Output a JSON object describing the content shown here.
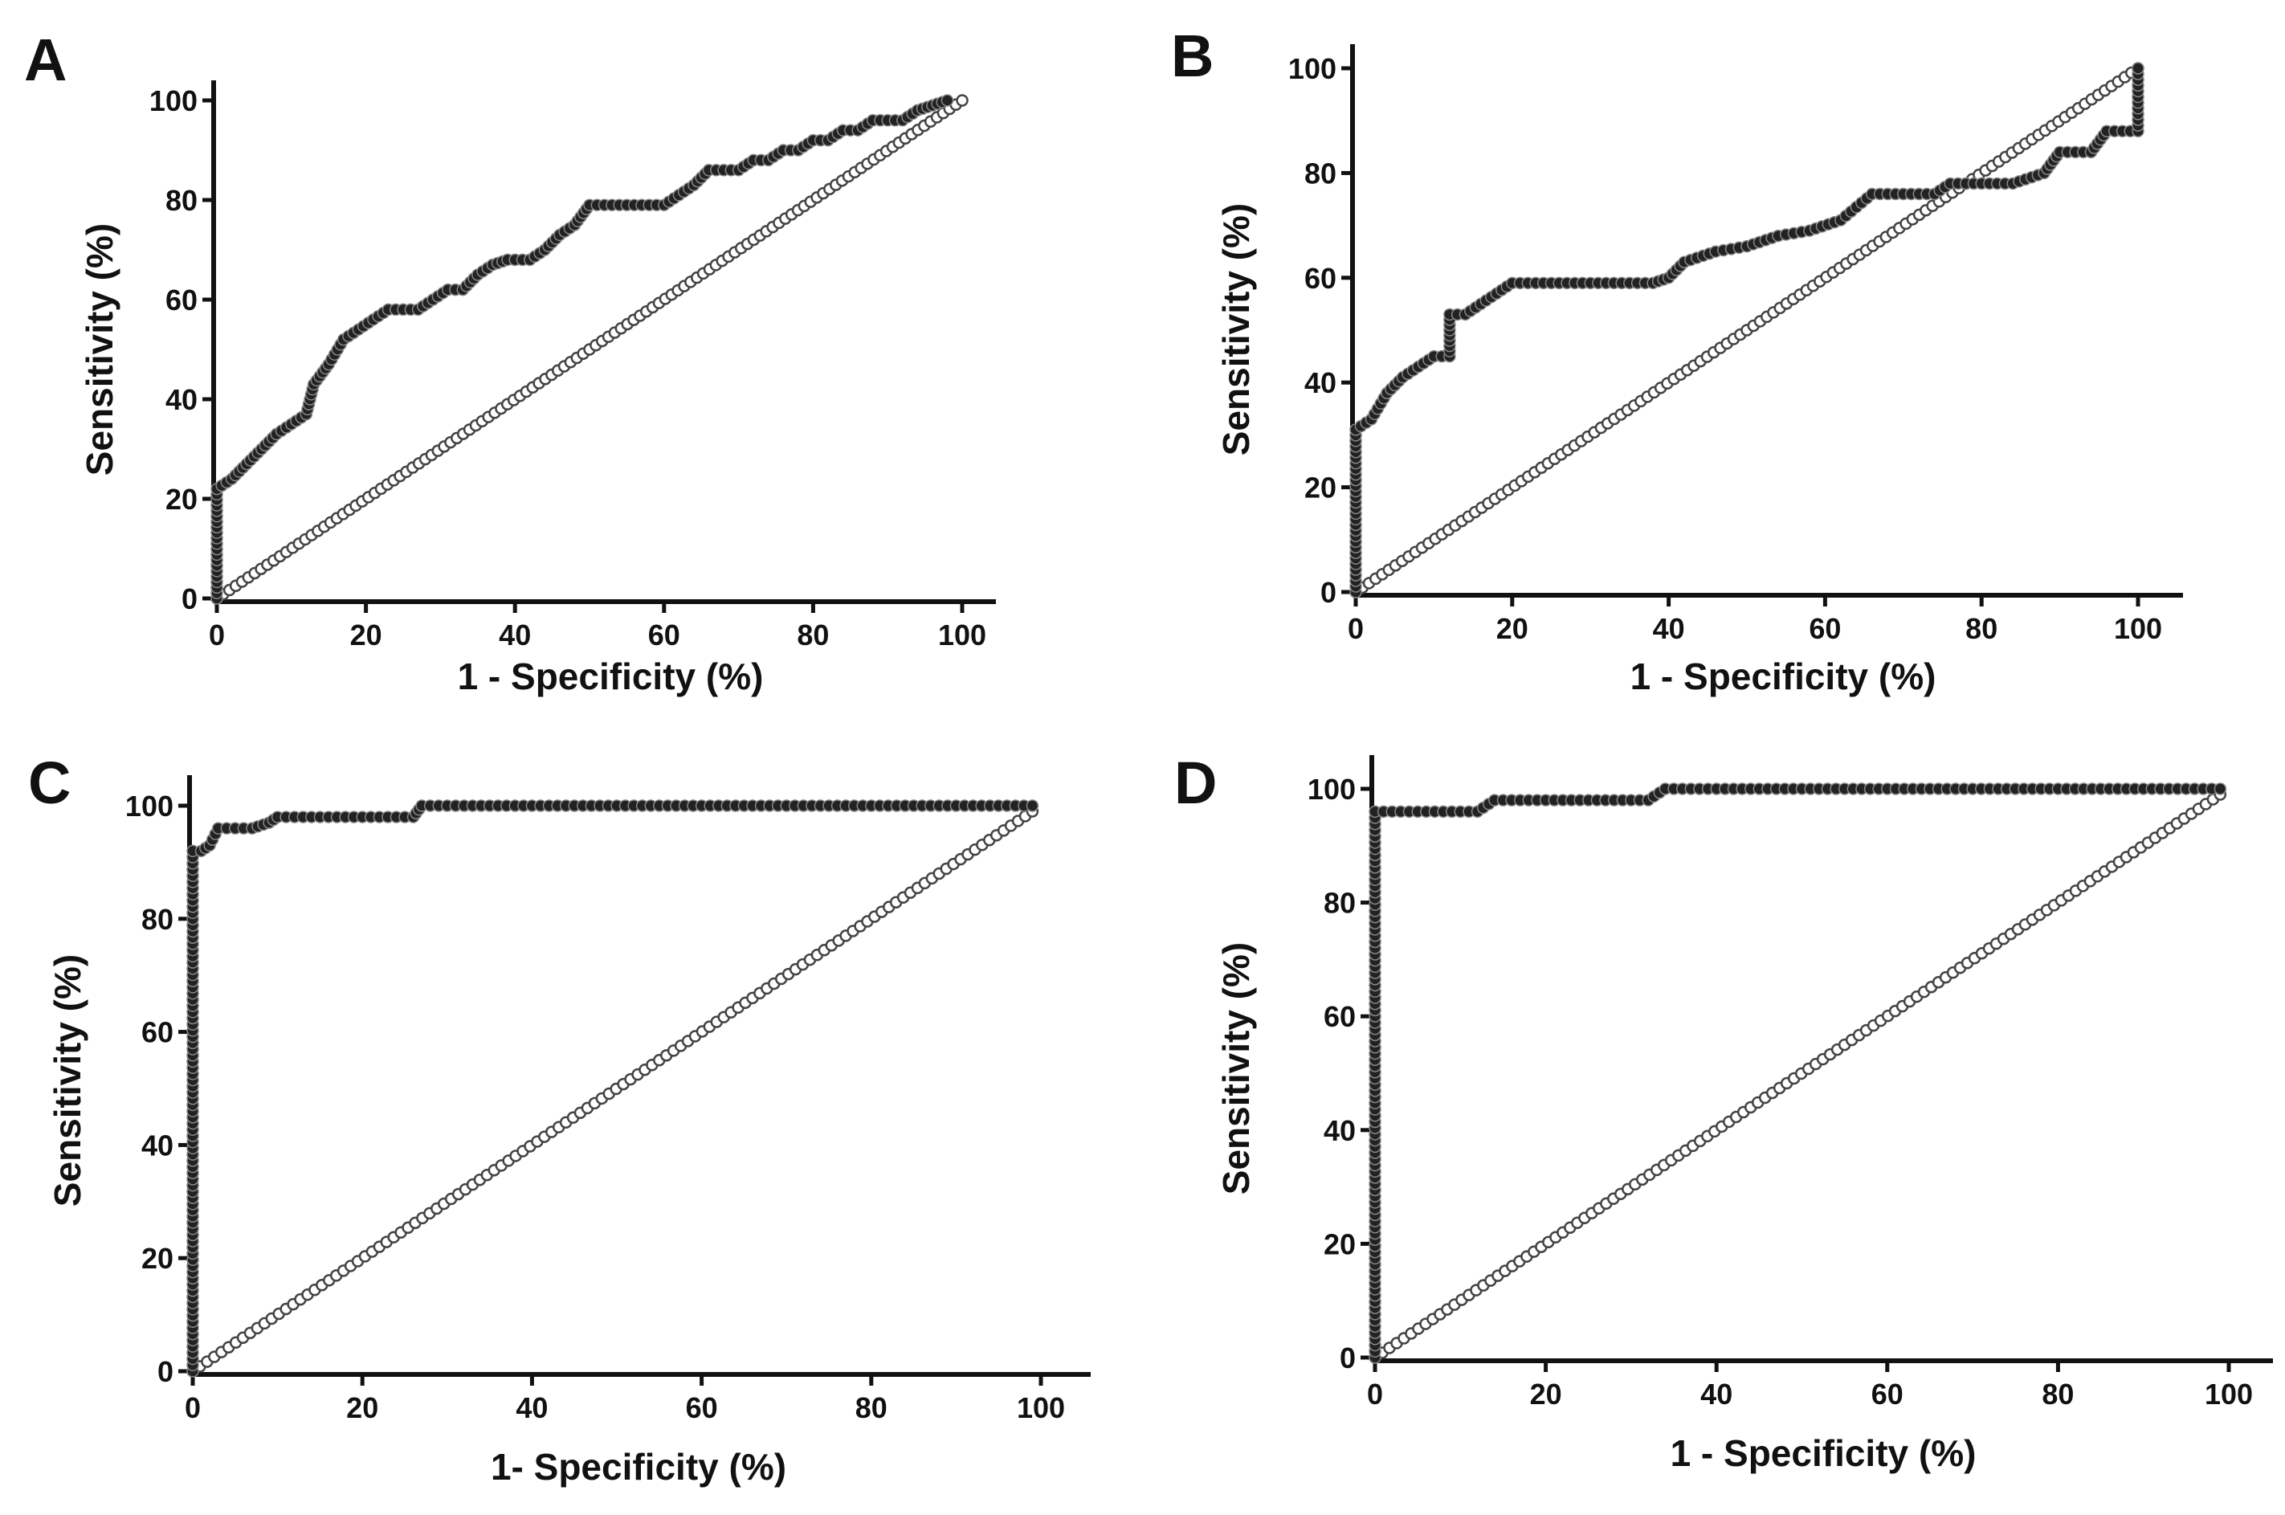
{
  "chart_data": [
    {
      "panel": "A",
      "type": "line",
      "xlabel": "1 - Specificity (%)",
      "ylabel": "Sensitivity (%)",
      "xlim": [
        0,
        100
      ],
      "ylim": [
        0,
        100
      ],
      "xticks": [
        0,
        20,
        40,
        60,
        80,
        100
      ],
      "yticks": [
        0,
        20,
        40,
        60,
        80,
        100
      ],
      "legend": "none",
      "series": [
        {
          "x": [
            0,
            0,
            2,
            4,
            6,
            8,
            10,
            12,
            13,
            15,
            17,
            19,
            21,
            23,
            25,
            27,
            29,
            31,
            33,
            35,
            37,
            39,
            42,
            44,
            46,
            48,
            50,
            52,
            54,
            56,
            58,
            60,
            62,
            64,
            66,
            68,
            70,
            72,
            74,
            76,
            78,
            80,
            82,
            84,
            86,
            88,
            90,
            92,
            94,
            96,
            98
          ],
          "y": [
            0,
            22,
            24,
            27,
            30,
            33,
            35,
            37,
            43,
            47,
            52,
            54,
            56,
            58,
            58,
            58,
            60,
            62,
            62,
            65,
            67,
            68,
            68,
            70,
            73,
            75,
            79,
            79,
            79,
            79,
            79,
            79,
            81,
            83,
            86,
            86,
            86,
            88,
            88,
            90,
            90,
            92,
            92,
            94,
            94,
            96,
            96,
            96,
            98,
            99,
            100
          ]
        },
        {
          "x": [
            0,
            100
          ],
          "y": [
            0,
            100
          ]
        }
      ]
    },
    {
      "panel": "B",
      "type": "line",
      "xlabel": "1 - Specificity (%)",
      "ylabel": "Sensitivity (%)",
      "xlim": [
        0,
        100
      ],
      "ylim": [
        0,
        100
      ],
      "xticks": [
        0,
        20,
        40,
        60,
        80,
        100
      ],
      "yticks": [
        0,
        20,
        40,
        60,
        80,
        100
      ],
      "legend": "none",
      "series": [
        {
          "x": [
            0,
            0,
            2,
            4,
            6,
            8,
            10,
            12,
            12,
            14,
            16,
            18,
            20,
            22,
            26,
            30,
            34,
            38,
            40,
            42,
            46,
            50,
            54,
            58,
            62,
            66,
            70,
            74,
            76,
            80,
            84,
            88,
            90,
            94,
            96,
            100,
            100
          ],
          "y": [
            0,
            31,
            33,
            38,
            41,
            43,
            45,
            45,
            53,
            53,
            55,
            57,
            59,
            59,
            59,
            59,
            59,
            59,
            60,
            63,
            65,
            66,
            68,
            69,
            71,
            76,
            76,
            76,
            78,
            78,
            78,
            80,
            84,
            84,
            88,
            88,
            100
          ]
        },
        {
          "x": [
            0,
            100
          ],
          "y": [
            0,
            100
          ]
        }
      ]
    },
    {
      "panel": "C",
      "type": "line",
      "xlabel": "1- Specificity (%)",
      "ylabel": "Sensitivity (%)",
      "xlim": [
        0,
        100
      ],
      "ylim": [
        0,
        100
      ],
      "xticks": [
        0,
        20,
        40,
        60,
        80,
        100
      ],
      "yticks": [
        0,
        20,
        40,
        60,
        80,
        100
      ],
      "legend": "none",
      "series": [
        {
          "x": [
            0,
            0,
            1,
            2,
            3,
            5,
            7,
            9,
            10,
            12,
            14,
            16,
            18,
            20,
            22,
            24,
            26,
            27,
            30,
            35,
            40,
            45,
            50,
            55,
            60,
            65,
            70,
            75,
            80,
            85,
            90,
            95,
            99
          ],
          "y": [
            0,
            92,
            92,
            93,
            96,
            96,
            96,
            97,
            98,
            98,
            98,
            98,
            98,
            98,
            98,
            98,
            98,
            100,
            100,
            100,
            100,
            100,
            100,
            100,
            100,
            100,
            100,
            100,
            100,
            100,
            100,
            100,
            100
          ]
        },
        {
          "x": [
            0,
            99
          ],
          "y": [
            0,
            99
          ]
        }
      ]
    },
    {
      "panel": "D",
      "type": "line",
      "xlabel": "1 - Specificity (%)",
      "ylabel": "Sensitivity (%)",
      "xlim": [
        0,
        100
      ],
      "ylim": [
        0,
        100
      ],
      "xticks": [
        0,
        20,
        40,
        60,
        80,
        100
      ],
      "yticks": [
        0,
        20,
        40,
        60,
        80,
        100
      ],
      "legend": "none",
      "series": [
        {
          "x": [
            0,
            0,
            2,
            4,
            6,
            8,
            10,
            12,
            14,
            16,
            18,
            20,
            22,
            24,
            26,
            28,
            30,
            32,
            34,
            38,
            42,
            46,
            50,
            55,
            60,
            65,
            70,
            75,
            80,
            85,
            90,
            95,
            99
          ],
          "y": [
            0,
            96,
            96,
            96,
            96,
            96,
            96,
            96,
            98,
            98,
            98,
            98,
            98,
            98,
            98,
            98,
            98,
            98,
            100,
            100,
            100,
            100,
            100,
            100,
            100,
            100,
            100,
            100,
            100,
            100,
            100,
            100,
            100
          ]
        },
        {
          "x": [
            0,
            99
          ],
          "y": [
            0,
            99
          ]
        }
      ]
    }
  ]
}
